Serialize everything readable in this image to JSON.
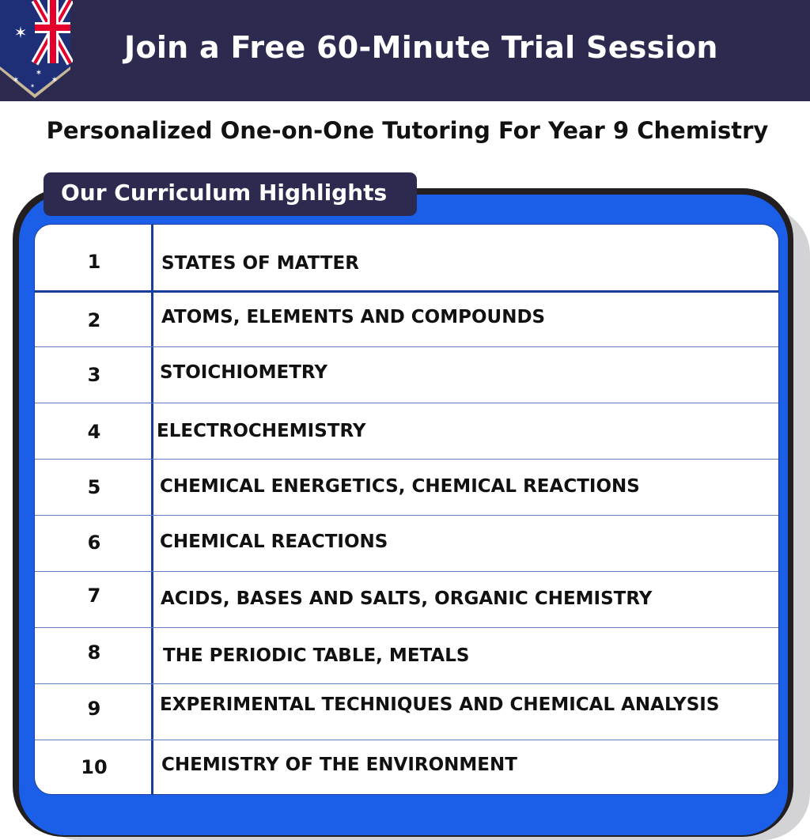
{
  "header": {
    "title": "Join a Free 60-Minute Trial Session",
    "flag_icon": "australian-flag-icon",
    "background": "#2c2a4f"
  },
  "subtitle": "Personalized One-on-One Tutoring For Year 9 Chemistry",
  "section": {
    "label": "Our Curriculum Highlights",
    "accent": "#1b5fe8"
  },
  "rows": [
    {
      "num": "1",
      "topic": "STATES OF MATTER"
    },
    {
      "num": "2",
      "topic": "ATOMS, ELEMENTS AND COMPOUNDS"
    },
    {
      "num": "3",
      "topic": "STOICHIOMETRY"
    },
    {
      "num": "4",
      "topic": "ELECTROCHEMISTRY"
    },
    {
      "num": "5",
      "topic": "CHEMICAL ENERGETICS, CHEMICAL REACTIONS"
    },
    {
      "num": "6",
      "topic": "CHEMICAL REACTIONS"
    },
    {
      "num": "7",
      "topic": "ACIDS, BASES AND SALTS, ORGANIC CHEMISTRY"
    },
    {
      "num": "8",
      "topic": "THE PERIODIC TABLE, METALS"
    },
    {
      "num": "9",
      "topic": "EXPERIMENTAL TECHNIQUES AND CHEMICAL ANALYSIS"
    },
    {
      "num": "10",
      "topic": "CHEMISTRY OF THE ENVIRONMENT"
    }
  ]
}
